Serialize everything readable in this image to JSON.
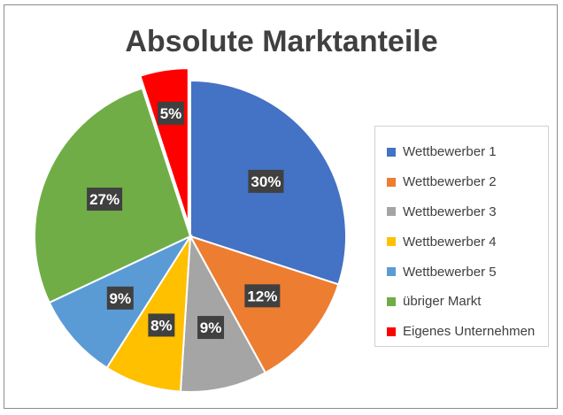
{
  "chart_data": {
    "type": "pie",
    "title": "Absolute Marktanteile",
    "slices": [
      {
        "name": "Wettbewerber 1",
        "value": 30,
        "label": "30%",
        "color": "#4472c4",
        "exploded": false
      },
      {
        "name": "Wettbewerber 2",
        "value": 12,
        "label": "12%",
        "color": "#ed7d31",
        "exploded": false
      },
      {
        "name": "Wettbewerber 3",
        "value": 9,
        "label": "9%",
        "color": "#a5a5a5",
        "exploded": false
      },
      {
        "name": "Wettbewerber 4",
        "value": 8,
        "label": "8%",
        "color": "#ffc000",
        "exploded": false
      },
      {
        "name": "Wettbewerber 5",
        "value": 9,
        "label": "9%",
        "color": "#5b9bd5",
        "exploded": false
      },
      {
        "name": "übriger Markt",
        "value": 27,
        "label": "27%",
        "color": "#70ad47",
        "exploded": false
      },
      {
        "name": "Eigenes Unternehmen",
        "value": 5,
        "label": "5%",
        "color": "#ff0000",
        "exploded": true
      }
    ],
    "legend_position": "right"
  }
}
